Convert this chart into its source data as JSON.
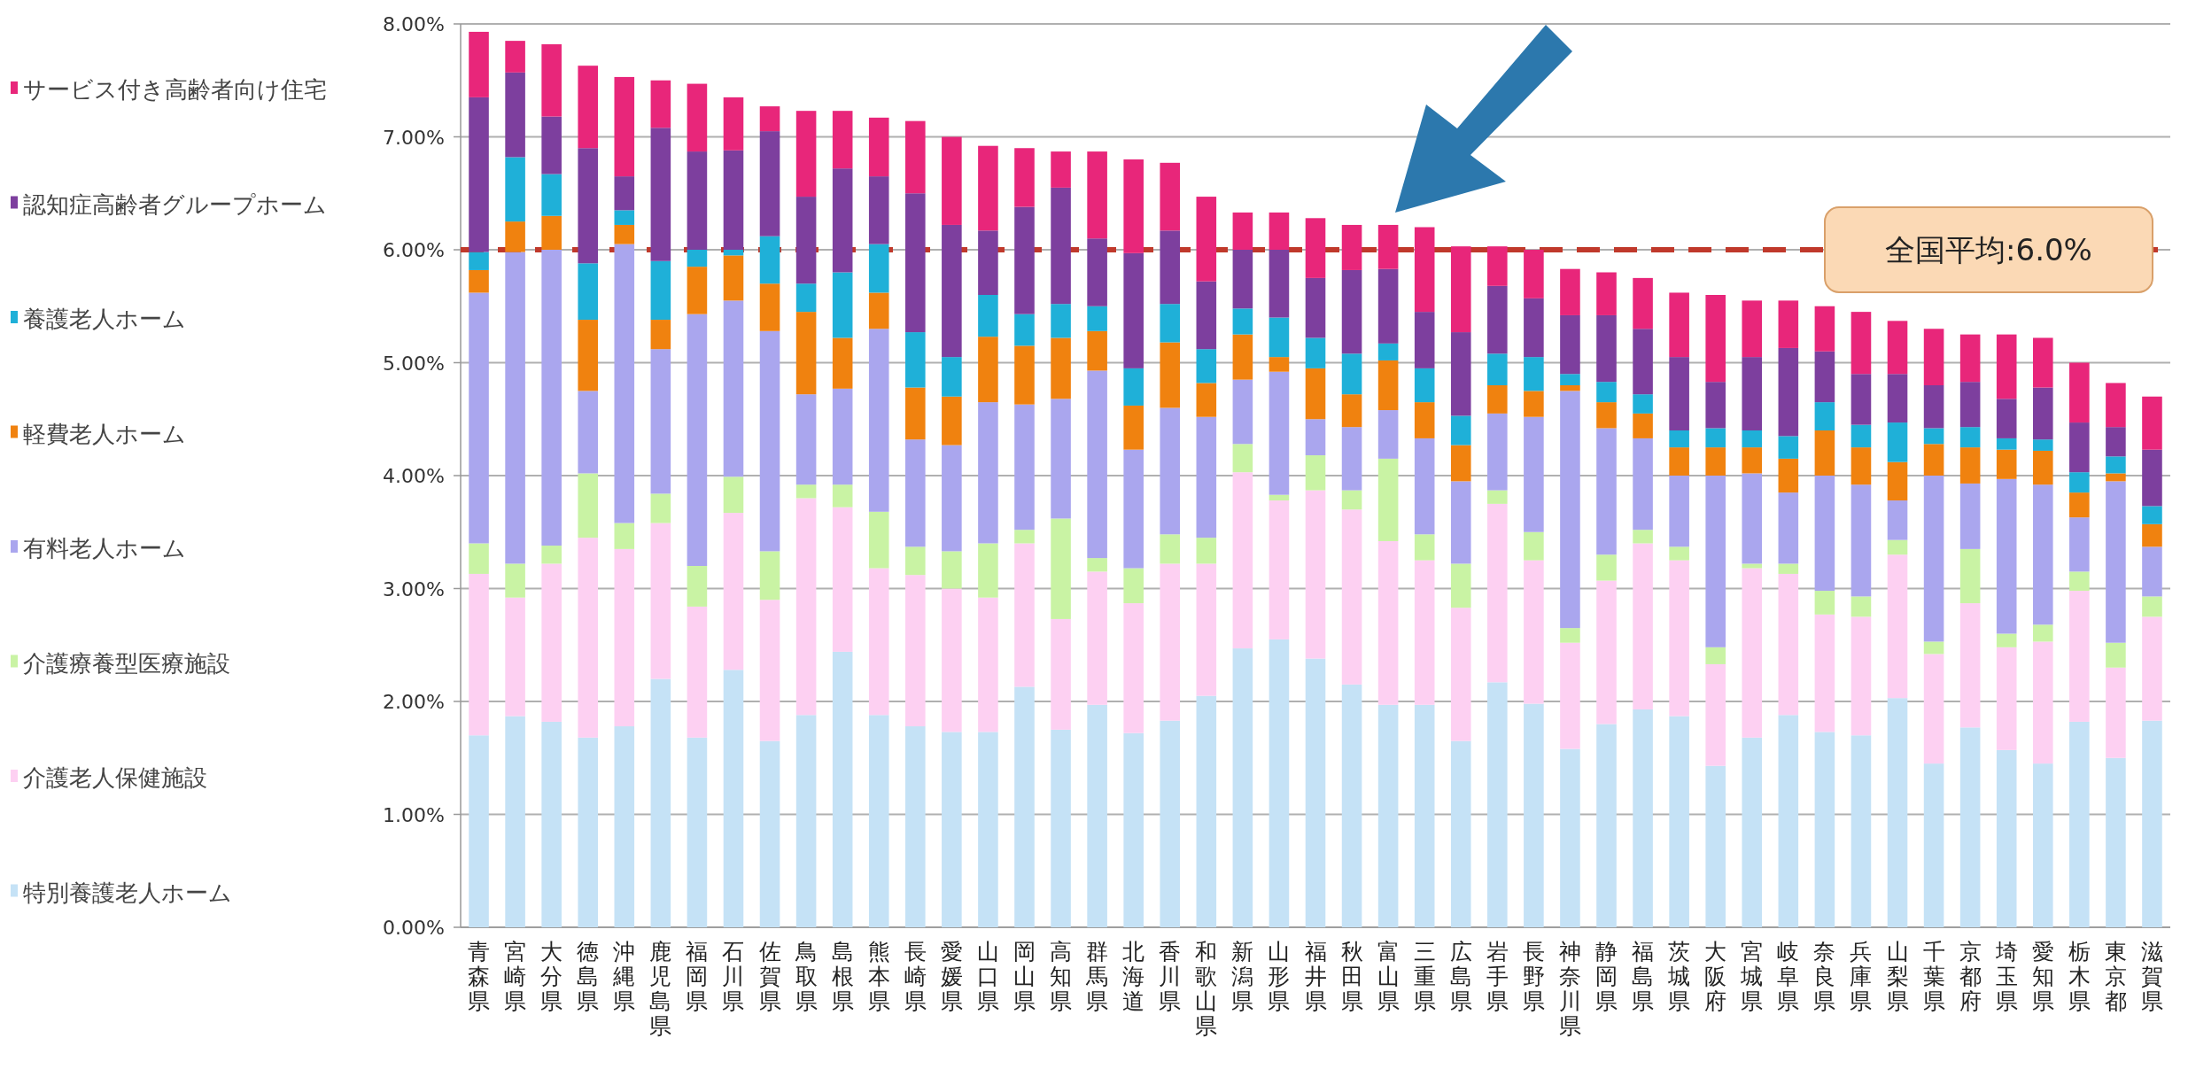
{
  "chart_data": {
    "type": "bar",
    "stacked": true,
    "categories": [
      "青森県",
      "宮崎県",
      "大分県",
      "徳島県",
      "沖縄県",
      "鹿児島県",
      "福岡県",
      "石川県",
      "佐賀県",
      "鳥取県",
      "島根県",
      "熊本県",
      "長崎県",
      "愛媛県",
      "山口県",
      "岡山県",
      "高知県",
      "群馬県",
      "北海道",
      "香川県",
      "和歌山県",
      "新潟県",
      "山形県",
      "福井県",
      "秋田県",
      "富山県",
      "三重県",
      "広島県",
      "岩手県",
      "長野県",
      "神奈川県",
      "静岡県",
      "福島県",
      "茨城県",
      "大阪府",
      "宮城県",
      "岐阜県",
      "奈良県",
      "兵庫県",
      "山梨県",
      "千葉県",
      "京都府",
      "埼玉県",
      "愛知県",
      "栃木県",
      "東京都",
      "滋賀県"
    ],
    "series": [
      {
        "name": "特別養護老人ホーム",
        "color": "#c5e2f6",
        "values": [
          1.7,
          1.87,
          1.82,
          1.68,
          1.78,
          2.2,
          1.68,
          2.28,
          1.65,
          1.88,
          2.44,
          1.88,
          1.78,
          1.73,
          1.73,
          2.13,
          1.75,
          1.97,
          1.72,
          1.83,
          2.05,
          2.47,
          2.55,
          2.38,
          2.15,
          1.97,
          1.97,
          1.65,
          2.17,
          1.98,
          1.58,
          1.8,
          1.93,
          1.87,
          1.43,
          1.68,
          1.88,
          1.73,
          1.7,
          2.03,
          1.45,
          1.77,
          1.57,
          1.45,
          1.82,
          1.5,
          1.83
        ]
      },
      {
        "name": "介護老人保健施設",
        "color": "#fdd0f2",
        "values": [
          1.43,
          1.05,
          1.4,
          1.77,
          1.57,
          1.38,
          1.16,
          1.39,
          1.25,
          1.92,
          1.28,
          1.3,
          1.34,
          1.27,
          1.19,
          1.27,
          0.98,
          1.18,
          1.15,
          1.39,
          1.17,
          1.56,
          1.23,
          1.49,
          1.55,
          1.45,
          1.28,
          1.18,
          1.58,
          1.27,
          0.94,
          1.27,
          1.47,
          1.38,
          0.9,
          1.5,
          1.25,
          1.04,
          1.05,
          1.27,
          0.97,
          1.1,
          0.91,
          1.08,
          1.16,
          0.8,
          0.92
        ]
      },
      {
        "name": "介護療養型医療施設",
        "color": "#c9f3a4",
        "values": [
          0.27,
          0.3,
          0.16,
          0.57,
          0.23,
          0.26,
          0.36,
          0.32,
          0.43,
          0.12,
          0.2,
          0.5,
          0.25,
          0.33,
          0.48,
          0.12,
          0.89,
          0.12,
          0.31,
          0.26,
          0.23,
          0.25,
          0.05,
          0.31,
          0.17,
          0.73,
          0.23,
          0.39,
          0.12,
          0.25,
          0.13,
          0.23,
          0.12,
          0.12,
          0.15,
          0.04,
          0.09,
          0.21,
          0.18,
          0.13,
          0.11,
          0.48,
          0.12,
          0.15,
          0.17,
          0.22,
          0.18
        ]
      },
      {
        "name": "有料老人ホーム",
        "color": "#aaa6ee",
        "values": [
          2.22,
          2.76,
          2.62,
          0.73,
          2.47,
          1.28,
          2.23,
          1.56,
          1.95,
          0.8,
          0.85,
          1.62,
          0.95,
          0.94,
          1.25,
          1.11,
          1.06,
          1.66,
          1.05,
          1.12,
          1.07,
          0.57,
          1.09,
          0.32,
          0.56,
          0.43,
          0.85,
          0.73,
          0.68,
          1.02,
          2.1,
          1.12,
          0.81,
          0.63,
          1.52,
          0.8,
          0.63,
          1.02,
          0.99,
          0.35,
          1.47,
          0.58,
          1.37,
          1.24,
          0.48,
          1.43,
          0.44
        ]
      },
      {
        "name": "軽費老人ホーム",
        "color": "#f0820f",
        "values": [
          0.2,
          0.27,
          0.3,
          0.63,
          0.17,
          0.26,
          0.42,
          0.4,
          0.42,
          0.73,
          0.45,
          0.32,
          0.46,
          0.43,
          0.58,
          0.52,
          0.54,
          0.35,
          0.39,
          0.58,
          0.3,
          0.4,
          0.13,
          0.45,
          0.29,
          0.44,
          0.32,
          0.32,
          0.25,
          0.23,
          0.05,
          0.23,
          0.22,
          0.25,
          0.25,
          0.23,
          0.3,
          0.4,
          0.33,
          0.34,
          0.28,
          0.32,
          0.26,
          0.3,
          0.22,
          0.07,
          0.2
        ]
      },
      {
        "name": "養護老人ホーム",
        "color": "#1fb0d8",
        "values": [
          0.16,
          0.57,
          0.37,
          0.5,
          0.13,
          0.52,
          0.15,
          0.05,
          0.42,
          0.25,
          0.58,
          0.43,
          0.49,
          0.35,
          0.37,
          0.28,
          0.3,
          0.22,
          0.33,
          0.34,
          0.3,
          0.23,
          0.35,
          0.27,
          0.36,
          0.15,
          0.3,
          0.26,
          0.28,
          0.3,
          0.1,
          0.18,
          0.17,
          0.15,
          0.17,
          0.15,
          0.2,
          0.25,
          0.2,
          0.35,
          0.14,
          0.18,
          0.1,
          0.1,
          0.18,
          0.15,
          0.16
        ]
      },
      {
        "name": "認知症高齢者グループホーム",
        "color": "#7d3f9e",
        "values": [
          1.37,
          0.75,
          0.51,
          1.02,
          0.3,
          1.18,
          0.87,
          0.88,
          0.93,
          0.77,
          0.92,
          0.6,
          1.23,
          1.17,
          0.57,
          0.95,
          1.03,
          0.6,
          1.02,
          0.65,
          0.6,
          0.52,
          0.6,
          0.53,
          0.74,
          0.66,
          0.5,
          0.74,
          0.6,
          0.52,
          0.52,
          0.59,
          0.58,
          0.65,
          0.41,
          0.65,
          0.78,
          0.45,
          0.45,
          0.43,
          0.38,
          0.4,
          0.35,
          0.46,
          0.44,
          0.26,
          0.5
        ]
      },
      {
        "name": "サービス付き高齢者向け住宅",
        "color": "#e8267a",
        "values": [
          0.58,
          0.28,
          0.64,
          0.73,
          0.88,
          0.42,
          0.6,
          0.47,
          0.22,
          0.76,
          0.51,
          0.52,
          0.64,
          0.78,
          0.75,
          0.52,
          0.32,
          0.77,
          0.83,
          0.6,
          0.75,
          0.33,
          0.33,
          0.53,
          0.4,
          0.39,
          0.75,
          0.76,
          0.35,
          0.43,
          0.41,
          0.38,
          0.45,
          0.57,
          0.77,
          0.5,
          0.42,
          0.4,
          0.55,
          0.47,
          0.5,
          0.42,
          0.57,
          0.44,
          0.53,
          0.39,
          0.47
        ]
      }
    ],
    "ylim": [
      0,
      8
    ],
    "yticks": [
      {
        "value": 0,
        "label": "0.00%"
      },
      {
        "value": 1,
        "label": "1.00%"
      },
      {
        "value": 2,
        "label": "2.00%"
      },
      {
        "value": 3,
        "label": "3.00%"
      },
      {
        "value": 4,
        "label": "4.00%"
      },
      {
        "value": 5,
        "label": "5.00%"
      },
      {
        "value": 6,
        "label": "6.00%"
      },
      {
        "value": 7,
        "label": "7.00%"
      },
      {
        "value": 8,
        "label": "8.00%"
      }
    ],
    "grid": "y",
    "legend": "left",
    "ref_lines": [
      {
        "axis": "y",
        "value": 6.0,
        "label": "全国平均:6.0%",
        "color": "#c0392b",
        "line_style": "dashed"
      }
    ]
  }
}
